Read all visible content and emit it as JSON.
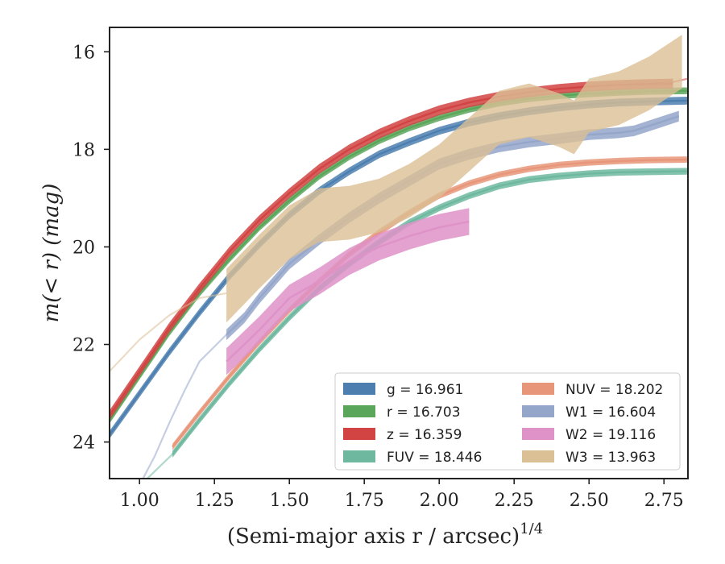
{
  "chart_data": {
    "type": "line",
    "xlabel": "(Semi-major axis r / arcsec)",
    "xlabel_sup": "1/4",
    "ylabel": "m(< r) (mag)",
    "xlim": [
      0.9,
      2.83
    ],
    "ylim": [
      24.75,
      15.5
    ],
    "y_inverted": true,
    "xticks": [
      "1.00",
      "1.25",
      "1.50",
      "1.75",
      "2.00",
      "2.25",
      "2.50",
      "2.75"
    ],
    "yticks": [
      "16",
      "18",
      "20",
      "22",
      "24"
    ],
    "legend_placement": "lower-right",
    "series": [
      {
        "key": "g",
        "name": "g = 16.961",
        "color": "#4c7fb0",
        "asymptote": 16.961,
        "x": [
          0.9,
          1.0,
          1.1,
          1.2,
          1.3,
          1.4,
          1.5,
          1.6,
          1.7,
          1.8,
          1.9,
          2.0,
          2.1,
          2.2,
          2.3,
          2.4,
          2.5,
          2.6,
          2.7,
          2.83
        ],
        "y": [
          23.85,
          23.0,
          22.15,
          21.35,
          20.6,
          19.95,
          19.35,
          18.85,
          18.45,
          18.1,
          17.85,
          17.62,
          17.45,
          17.32,
          17.22,
          17.14,
          17.08,
          17.04,
          17.02,
          17.0
        ],
        "band_width": 0.16,
        "faint_x": [],
        "faint_y": []
      },
      {
        "key": "r",
        "name": "r = 16.703",
        "color": "#5aa65a",
        "asymptote": 16.703,
        "x": [
          0.9,
          1.0,
          1.1,
          1.2,
          1.3,
          1.4,
          1.5,
          1.6,
          1.7,
          1.8,
          1.9,
          2.0,
          2.1,
          2.2,
          2.3,
          2.4,
          2.5,
          2.6,
          2.7,
          2.83
        ],
        "y": [
          23.55,
          22.65,
          21.75,
          20.95,
          20.25,
          19.6,
          19.05,
          18.55,
          18.15,
          17.82,
          17.56,
          17.35,
          17.18,
          17.05,
          16.96,
          16.9,
          16.86,
          16.83,
          16.81,
          16.8
        ],
        "band_width": 0.14,
        "faint_x": [],
        "faint_y": []
      },
      {
        "key": "z",
        "name": "z = 16.359",
        "color": "#d24343",
        "asymptote": 16.359,
        "x": [
          0.9,
          1.0,
          1.1,
          1.2,
          1.3,
          1.4,
          1.5,
          1.6,
          1.7,
          1.8,
          1.9,
          2.0,
          2.1,
          2.2,
          2.3,
          2.4,
          2.5,
          2.6,
          2.7,
          2.78
        ],
        "y": [
          23.45,
          22.55,
          21.65,
          20.85,
          20.1,
          19.45,
          18.9,
          18.4,
          18.0,
          17.68,
          17.42,
          17.2,
          17.04,
          16.92,
          16.83,
          16.76,
          16.71,
          16.68,
          16.66,
          16.65
        ],
        "band_width": 0.2,
        "faint_x": [
          2.78,
          2.83
        ],
        "faint_y": [
          16.62,
          16.55
        ]
      },
      {
        "key": "FUV",
        "name": "FUV = 18.446",
        "color": "#6fb8a0",
        "asymptote": 18.446,
        "x": [
          1.11,
          1.2,
          1.3,
          1.4,
          1.5,
          1.6,
          1.7,
          1.8,
          1.9,
          2.0,
          2.1,
          2.2,
          2.3,
          2.4,
          2.5,
          2.6,
          2.7,
          2.83
        ],
        "y": [
          24.25,
          23.55,
          22.8,
          22.1,
          21.45,
          20.85,
          20.35,
          19.9,
          19.5,
          19.2,
          18.95,
          18.75,
          18.62,
          18.55,
          18.5,
          18.47,
          18.46,
          18.45
        ],
        "band_width": 0.14,
        "faint_x": [
          0.95,
          1.11
        ],
        "faint_y": [
          25.2,
          24.25
        ]
      },
      {
        "key": "NUV",
        "name": "NUV = 18.202",
        "color": "#e8967a",
        "asymptote": 18.202,
        "x": [
          1.11,
          1.2,
          1.3,
          1.4,
          1.5,
          1.6,
          1.7,
          1.8,
          1.9,
          2.0,
          2.1,
          2.2,
          2.3,
          2.4,
          2.5,
          2.6,
          2.7,
          2.83
        ],
        "y": [
          24.1,
          23.4,
          22.65,
          21.95,
          21.3,
          20.7,
          20.15,
          19.7,
          19.3,
          18.95,
          18.7,
          18.52,
          18.4,
          18.32,
          18.27,
          18.24,
          18.22,
          18.21
        ],
        "band_width": 0.13,
        "faint_x": [],
        "faint_y": []
      },
      {
        "key": "W1",
        "name": "W1 = 16.604",
        "color": "#95a6cb",
        "asymptote": 16.604,
        "x": [
          1.29,
          1.35,
          1.4,
          1.45,
          1.5,
          1.55,
          1.6,
          1.7,
          1.8,
          1.9,
          2.0,
          2.1,
          2.2,
          2.3,
          2.4,
          2.5,
          2.6,
          2.65,
          2.7,
          2.8
        ],
        "y": [
          21.8,
          21.45,
          21.05,
          20.7,
          20.35,
          20.1,
          19.85,
          19.4,
          19.0,
          18.65,
          18.3,
          18.1,
          17.95,
          17.85,
          17.78,
          17.7,
          17.66,
          17.62,
          17.52,
          17.32
        ],
        "band_width": 0.22,
        "faint_x": [
          0.99,
          1.05,
          1.1,
          1.15,
          1.2,
          1.29
        ],
        "faint_y": [
          25.0,
          24.3,
          23.6,
          22.95,
          22.35,
          21.8
        ]
      },
      {
        "key": "W2",
        "name": "W2 = 19.116",
        "color": "#de92c8",
        "asymptote": 19.116,
        "x": [
          1.29,
          1.4,
          1.5,
          1.6,
          1.7,
          1.8,
          1.9,
          2.0,
          2.1
        ],
        "y": [
          22.35,
          21.7,
          21.05,
          20.7,
          20.3,
          20.0,
          19.78,
          19.6,
          19.48
        ],
        "band_width": 0.55,
        "faint_x": [],
        "faint_y": []
      },
      {
        "key": "W3",
        "name": "W3 = 13.963",
        "color": "#dbbf95",
        "asymptote": 13.963,
        "x": [
          1.29,
          1.4,
          1.5,
          1.6,
          1.7,
          1.8,
          1.9,
          2.0,
          2.1,
          2.2,
          2.3,
          2.4,
          2.45,
          2.5,
          2.6,
          2.7,
          2.81
        ],
        "y": [
          21.0,
          20.3,
          19.7,
          19.35,
          19.3,
          19.15,
          18.85,
          18.45,
          17.9,
          17.35,
          17.2,
          17.4,
          17.55,
          17.1,
          16.95,
          16.65,
          16.2
        ],
        "band_width": 1.1,
        "faint_x": [
          0.9,
          1.0,
          1.1,
          1.2,
          1.29
        ],
        "faint_y": [
          22.55,
          21.9,
          21.4,
          21.05,
          20.95
        ]
      }
    ],
    "legend": [
      {
        "label": "g = 16.961",
        "color": "#4c7fb0"
      },
      {
        "label": "NUV = 18.202",
        "color": "#e8967a"
      },
      {
        "label": "r = 16.703",
        "color": "#5aa65a"
      },
      {
        "label": "W1 = 16.604",
        "color": "#95a6cb"
      },
      {
        "label": "z = 16.359",
        "color": "#d24343"
      },
      {
        "label": "W2 = 19.116",
        "color": "#de92c8"
      },
      {
        "label": "FUV = 18.446",
        "color": "#6fb8a0"
      },
      {
        "label": "W3 = 13.963",
        "color": "#dbbf95"
      }
    ]
  }
}
